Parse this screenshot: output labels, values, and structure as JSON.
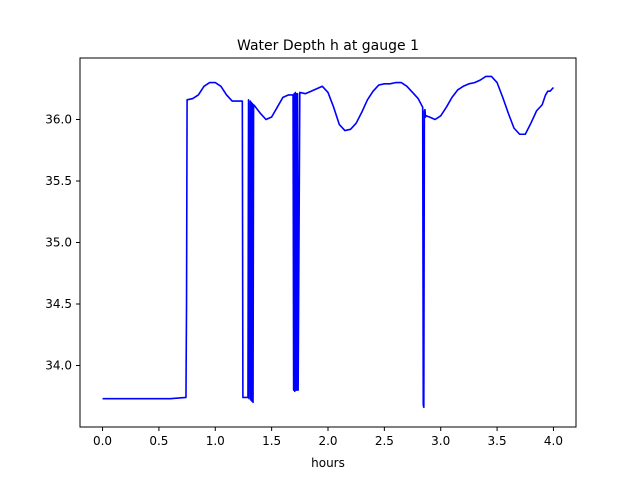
{
  "chart_data": {
    "type": "line",
    "title": "Water Depth h at gauge 1",
    "xlabel": "hours",
    "ylabel": "",
    "xlim": [
      -0.2,
      4.2
    ],
    "ylim": [
      33.5,
      36.5
    ],
    "xticks": [
      0.0,
      0.5,
      1.0,
      1.5,
      2.0,
      2.5,
      3.0,
      3.5,
      4.0
    ],
    "xtick_labels": [
      "0.0",
      "0.5",
      "1.0",
      "1.5",
      "2.0",
      "2.5",
      "3.0",
      "3.5",
      "4.0"
    ],
    "yticks": [
      34.0,
      34.5,
      35.0,
      35.5,
      36.0
    ],
    "ytick_labels": [
      "34.0",
      "34.5",
      "35.0",
      "35.5",
      "36.0"
    ],
    "grid": false,
    "series": [
      {
        "color": "#0000ff",
        "x": [
          0.0,
          0.3,
          0.6,
          0.74,
          0.745,
          0.75,
          0.8,
          0.85,
          0.9,
          0.95,
          1.0,
          1.05,
          1.1,
          1.15,
          1.2,
          1.24,
          1.245,
          1.25,
          1.29,
          1.295,
          1.3,
          1.31,
          1.315,
          1.32,
          1.325,
          1.33,
          1.335,
          1.34,
          1.35,
          1.4,
          1.45,
          1.5,
          1.55,
          1.6,
          1.65,
          1.69,
          1.695,
          1.7,
          1.705,
          1.71,
          1.715,
          1.72,
          1.725,
          1.73,
          1.735,
          1.75,
          1.8,
          1.85,
          1.9,
          1.95,
          2.0,
          2.05,
          2.1,
          2.15,
          2.2,
          2.25,
          2.3,
          2.35,
          2.4,
          2.45,
          2.5,
          2.55,
          2.6,
          2.65,
          2.7,
          2.75,
          2.8,
          2.84,
          2.845,
          2.85,
          2.855,
          2.86,
          2.865,
          2.87,
          2.9,
          2.95,
          3.0,
          3.05,
          3.1,
          3.15,
          3.2,
          3.25,
          3.3,
          3.35,
          3.4,
          3.45,
          3.5,
          3.55,
          3.6,
          3.65,
          3.7,
          3.75,
          3.8,
          3.85,
          3.9,
          3.93,
          3.95,
          3.97,
          4.0
        ],
        "y": [
          33.73,
          33.73,
          33.73,
          33.74,
          34.5,
          36.16,
          36.17,
          36.2,
          36.27,
          36.3,
          36.3,
          36.27,
          36.2,
          36.15,
          36.15,
          36.15,
          33.74,
          33.74,
          33.74,
          36.16,
          33.73,
          36.15,
          33.72,
          36.14,
          33.71,
          36.13,
          33.7,
          36.12,
          36.11,
          36.05,
          36.0,
          36.02,
          36.1,
          36.18,
          36.2,
          36.2,
          33.8,
          36.21,
          33.79,
          36.22,
          33.8,
          36.21,
          33.8,
          36.21,
          33.8,
          36.22,
          36.21,
          36.23,
          36.25,
          36.27,
          36.22,
          36.1,
          35.96,
          35.91,
          35.92,
          35.97,
          36.06,
          36.16,
          36.23,
          36.28,
          36.29,
          36.29,
          36.3,
          36.3,
          36.27,
          36.22,
          36.17,
          36.1,
          33.68,
          33.66,
          36.07,
          36.08,
          36.02,
          36.03,
          36.02,
          36.0,
          36.03,
          36.1,
          36.18,
          36.24,
          36.27,
          36.29,
          36.3,
          36.32,
          36.35,
          36.35,
          36.3,
          36.18,
          36.05,
          35.93,
          35.88,
          35.88,
          35.97,
          36.07,
          36.12,
          36.2,
          36.23,
          36.23,
          36.26
        ]
      }
    ]
  }
}
